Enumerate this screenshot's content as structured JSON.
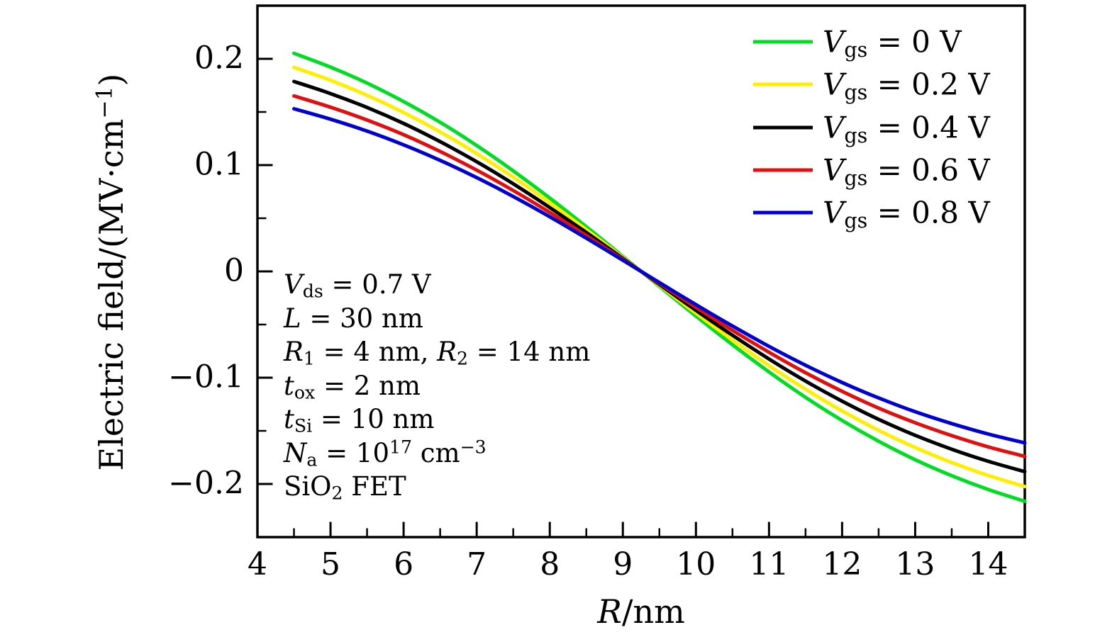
{
  "figure": {
    "background": "#ffffff",
    "axis_color": "#000000"
  },
  "axes": {
    "x": {
      "label_segments": [
        {
          "t": "R",
          "s": "it"
        },
        {
          "t": "/nm",
          "s": "rm"
        }
      ],
      "ticks": [
        4,
        5,
        6,
        7,
        8,
        9,
        10,
        11,
        12,
        13,
        14
      ],
      "tick_labels": [
        "4",
        "5",
        "6",
        "7",
        "8",
        "9",
        "10",
        "11",
        "12",
        "13",
        "14"
      ],
      "minor_ticks": [
        4.5,
        5.5,
        6.5,
        7.5,
        8.5,
        9.5,
        10.5,
        11.5,
        12.5,
        13.5
      ],
      "range": [
        4,
        14.5
      ]
    },
    "y": {
      "label_segments": [
        {
          "t": "Electric field/(MV·cm",
          "s": "rm"
        },
        {
          "t": "−1",
          "s": "sup"
        },
        {
          "t": ")",
          "s": "rm"
        }
      ],
      "ticks": [
        0.2,
        0.1,
        0,
        -0.1,
        -0.2
      ],
      "tick_labels": [
        "0.2",
        "0.1",
        "0",
        "−0.1",
        "−0.2"
      ],
      "minor_ticks": [
        0.15,
        0.05,
        -0.05,
        -0.15
      ],
      "range": [
        -0.25,
        0.25
      ]
    }
  },
  "legend": {
    "items": [
      {
        "color": "#00dd22",
        "segments": [
          {
            "t": "V",
            "s": "it"
          },
          {
            "t": "gs",
            "s": "sub"
          },
          {
            "t": " = 0 V",
            "s": "rm"
          }
        ]
      },
      {
        "color": "#ffee00",
        "segments": [
          {
            "t": "V",
            "s": "it"
          },
          {
            "t": "gs",
            "s": "sub"
          },
          {
            "t": " = 0.2 V",
            "s": "rm"
          }
        ]
      },
      {
        "color": "#000000",
        "segments": [
          {
            "t": "V",
            "s": "it"
          },
          {
            "t": "gs",
            "s": "sub"
          },
          {
            "t": " = 0.4 V",
            "s": "rm"
          }
        ]
      },
      {
        "color": "#e01010",
        "segments": [
          {
            "t": "V",
            "s": "it"
          },
          {
            "t": "gs",
            "s": "sub"
          },
          {
            "t": " = 0.6 V",
            "s": "rm"
          }
        ]
      },
      {
        "color": "#0000d0",
        "segments": [
          {
            "t": "V",
            "s": "it"
          },
          {
            "t": "gs",
            "s": "sub"
          },
          {
            "t": " = 0.8 V",
            "s": "rm"
          }
        ]
      }
    ]
  },
  "annotation": {
    "lines": [
      {
        "segments": [
          {
            "t": "V",
            "s": "it"
          },
          {
            "t": "ds",
            "s": "sub"
          },
          {
            "t": " = 0.7 V",
            "s": "rm"
          }
        ]
      },
      {
        "segments": [
          {
            "t": "L",
            "s": "it"
          },
          {
            "t": " = 30 nm",
            "s": "rm"
          }
        ]
      },
      {
        "segments": [
          {
            "t": "R",
            "s": "it"
          },
          {
            "t": "1",
            "s": "sub"
          },
          {
            "t": " = 4 nm, ",
            "s": "rm"
          },
          {
            "t": "R",
            "s": "it"
          },
          {
            "t": "2",
            "s": "sub"
          },
          {
            "t": " = 14 nm",
            "s": "rm"
          }
        ]
      },
      {
        "segments": [
          {
            "t": "t",
            "s": "it"
          },
          {
            "t": "ox",
            "s": "sub"
          },
          {
            "t": " = 2 nm",
            "s": "rm"
          }
        ]
      },
      {
        "segments": [
          {
            "t": "t",
            "s": "it"
          },
          {
            "t": "Si",
            "s": "sub"
          },
          {
            "t": " = 10 nm",
            "s": "rm"
          }
        ]
      },
      {
        "segments": [
          {
            "t": "N",
            "s": "it"
          },
          {
            "t": "a",
            "s": "sub"
          },
          {
            "t": " = 10",
            "s": "rm"
          },
          {
            "t": "17",
            "s": "sup"
          },
          {
            "t": " cm",
            "s": "rm"
          },
          {
            "t": "−3",
            "s": "sup"
          }
        ]
      },
      {
        "segments": [
          {
            "t": "SiO",
            "s": "rm"
          },
          {
            "t": "2",
            "s": "sub"
          },
          {
            "t": " FET",
            "s": "rm"
          }
        ]
      }
    ]
  },
  "chart_data": {
    "type": "line",
    "title": "",
    "xlabel": "R/nm",
    "ylabel": "Electric field/(MV·cm−1)",
    "xlim": [
      4,
      14.5
    ],
    "ylim": [
      -0.25,
      0.25
    ],
    "grid": false,
    "legend_position": "top-right-inside",
    "x": [
      4.5,
      5,
      5.5,
      6,
      6.5,
      7,
      7.5,
      8,
      8.5,
      9,
      9.5,
      10,
      10.5,
      11,
      11.5,
      12,
      12.5,
      13,
      13.5,
      14,
      14.5
    ],
    "series": [
      {
        "name": "Vgs = 0 V",
        "color": "#00dd22",
        "values": [
          0.2052,
          0.1922,
          0.1771,
          0.1598,
          0.1403,
          0.1185,
          0.0946,
          0.069,
          0.042,
          0.0141,
          -0.0141,
          -0.042,
          -0.069,
          -0.0946,
          -0.1185,
          -0.1403,
          -0.1598,
          -0.1771,
          -0.1922,
          -0.2052,
          -0.2163
        ]
      },
      {
        "name": "Vgs = 0.2 V",
        "color": "#ffee00",
        "values": [
          0.192,
          0.1798,
          0.1657,
          0.1495,
          0.1312,
          0.1109,
          0.0886,
          0.0646,
          0.0393,
          0.0132,
          -0.0132,
          -0.0393,
          -0.0646,
          -0.0886,
          -0.1109,
          -0.1312,
          -0.1495,
          -0.1657,
          -0.1798,
          -0.192,
          -0.2024
        ]
      },
      {
        "name": "Vgs = 0.4 V",
        "color": "#000000",
        "values": [
          0.1787,
          0.1673,
          0.1542,
          0.1392,
          0.1221,
          0.1032,
          0.0824,
          0.0601,
          0.0366,
          0.0123,
          -0.0123,
          -0.0366,
          -0.0601,
          -0.0824,
          -0.1032,
          -0.1221,
          -0.1392,
          -0.1542,
          -0.1673,
          -0.1787,
          -0.1884
        ]
      },
      {
        "name": "Vgs = 0.6 V",
        "color": "#e01010",
        "values": [
          0.1651,
          0.1545,
          0.1424,
          0.1286,
          0.1128,
          0.0953,
          0.0761,
          0.0555,
          0.0338,
          0.0113,
          -0.0113,
          -0.0338,
          -0.0555,
          -0.0761,
          -0.0953,
          -0.1128,
          -0.1286,
          -0.1424,
          -0.1545,
          -0.1651,
          -0.174
        ]
      },
      {
        "name": "Vgs = 0.8 V",
        "color": "#0000d0",
        "values": [
          0.153,
          0.1432,
          0.132,
          0.1191,
          0.1045,
          0.0883,
          0.0705,
          0.0514,
          0.0313,
          0.0105,
          -0.0105,
          -0.0313,
          -0.0514,
          -0.0705,
          -0.0883,
          -0.1045,
          -0.1191,
          -0.132,
          -0.1432,
          -0.153,
          -0.1613
        ]
      }
    ]
  }
}
